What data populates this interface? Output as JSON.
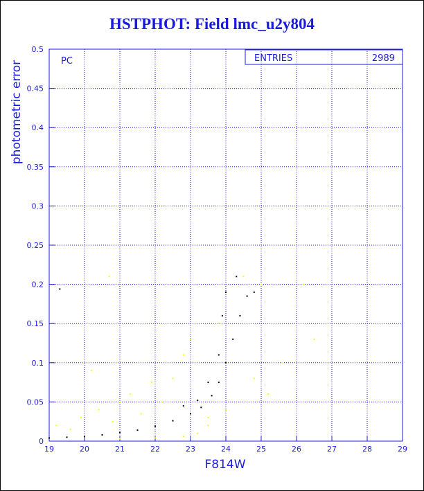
{
  "chart_data": {
    "type": "scatter",
    "title": "HSTPHOT: Field lmc_u2y804",
    "xlabel": "F814W",
    "ylabel": "photometric error",
    "xlim": [
      19,
      29
    ],
    "ylim": [
      0,
      0.5
    ],
    "x_ticks": [
      "19",
      "20",
      "21",
      "22",
      "23",
      "24",
      "25",
      "26",
      "27",
      "28",
      "29"
    ],
    "y_ticks": [
      "0",
      "0.05",
      "0.1",
      "0.15",
      "0.2",
      "0.25",
      "0.3",
      "0.35",
      "0.4",
      "0.45",
      "0.5"
    ],
    "grid": true,
    "panel_label": "PC",
    "stats": {
      "label": "ENTRIES",
      "value": "2989"
    },
    "colors": {
      "axes": "#1a1adc",
      "grid": "#1a1adc",
      "series_main": "#000000",
      "series_other": "#ffff00"
    },
    "series": [
      {
        "color": "#000000",
        "points": [
          [
            19.3,
            0.194
          ],
          [
            19.0,
            0.004
          ],
          [
            19.5,
            0.005
          ],
          [
            20.0,
            0.006
          ],
          [
            20.5,
            0.008
          ],
          [
            21.0,
            0.011
          ],
          [
            21.5,
            0.014
          ],
          [
            22.0,
            0.019
          ],
          [
            22.5,
            0.026
          ],
          [
            23.0,
            0.035
          ],
          [
            23.3,
            0.043
          ],
          [
            23.6,
            0.058
          ],
          [
            23.8,
            0.075
          ],
          [
            24.0,
            0.1
          ],
          [
            24.2,
            0.13
          ],
          [
            24.4,
            0.16
          ],
          [
            24.6,
            0.185
          ],
          [
            24.8,
            0.19
          ],
          [
            23.2,
            0.052
          ],
          [
            23.5,
            0.075
          ],
          [
            23.8,
            0.11
          ],
          [
            24.0,
            0.19
          ],
          [
            23.9,
            0.16
          ],
          [
            24.3,
            0.21
          ],
          [
            22.8,
            0.045
          ]
        ]
      },
      {
        "color": "#ffff00",
        "points": [
          [
            19.2,
            0.02
          ],
          [
            19.6,
            0.015
          ],
          [
            19.9,
            0.03
          ],
          [
            20.2,
            0.09
          ],
          [
            20.4,
            0.04
          ],
          [
            20.8,
            0.025
          ],
          [
            21.0,
            0.05
          ],
          [
            21.3,
            0.06
          ],
          [
            21.6,
            0.035
          ],
          [
            21.9,
            0.075
          ],
          [
            22.2,
            0.05
          ],
          [
            22.5,
            0.08
          ],
          [
            22.8,
            0.11
          ],
          [
            23.0,
            0.13
          ],
          [
            23.2,
            0.01
          ],
          [
            23.5,
            0.02
          ],
          [
            23.8,
            0.15
          ],
          [
            24.0,
            0.04
          ],
          [
            24.5,
            0.21
          ],
          [
            25.0,
            0.2
          ],
          [
            25.2,
            0.06
          ],
          [
            25.6,
            0.1
          ],
          [
            26.2,
            0.2
          ],
          [
            26.5,
            0.13
          ],
          [
            20.7,
            0.21
          ],
          [
            21.0,
            0.003
          ],
          [
            22.0,
            0.004
          ],
          [
            22.8,
            0.006
          ],
          [
            23.5,
            0.03
          ],
          [
            24.8,
            0.08
          ]
        ]
      }
    ]
  }
}
